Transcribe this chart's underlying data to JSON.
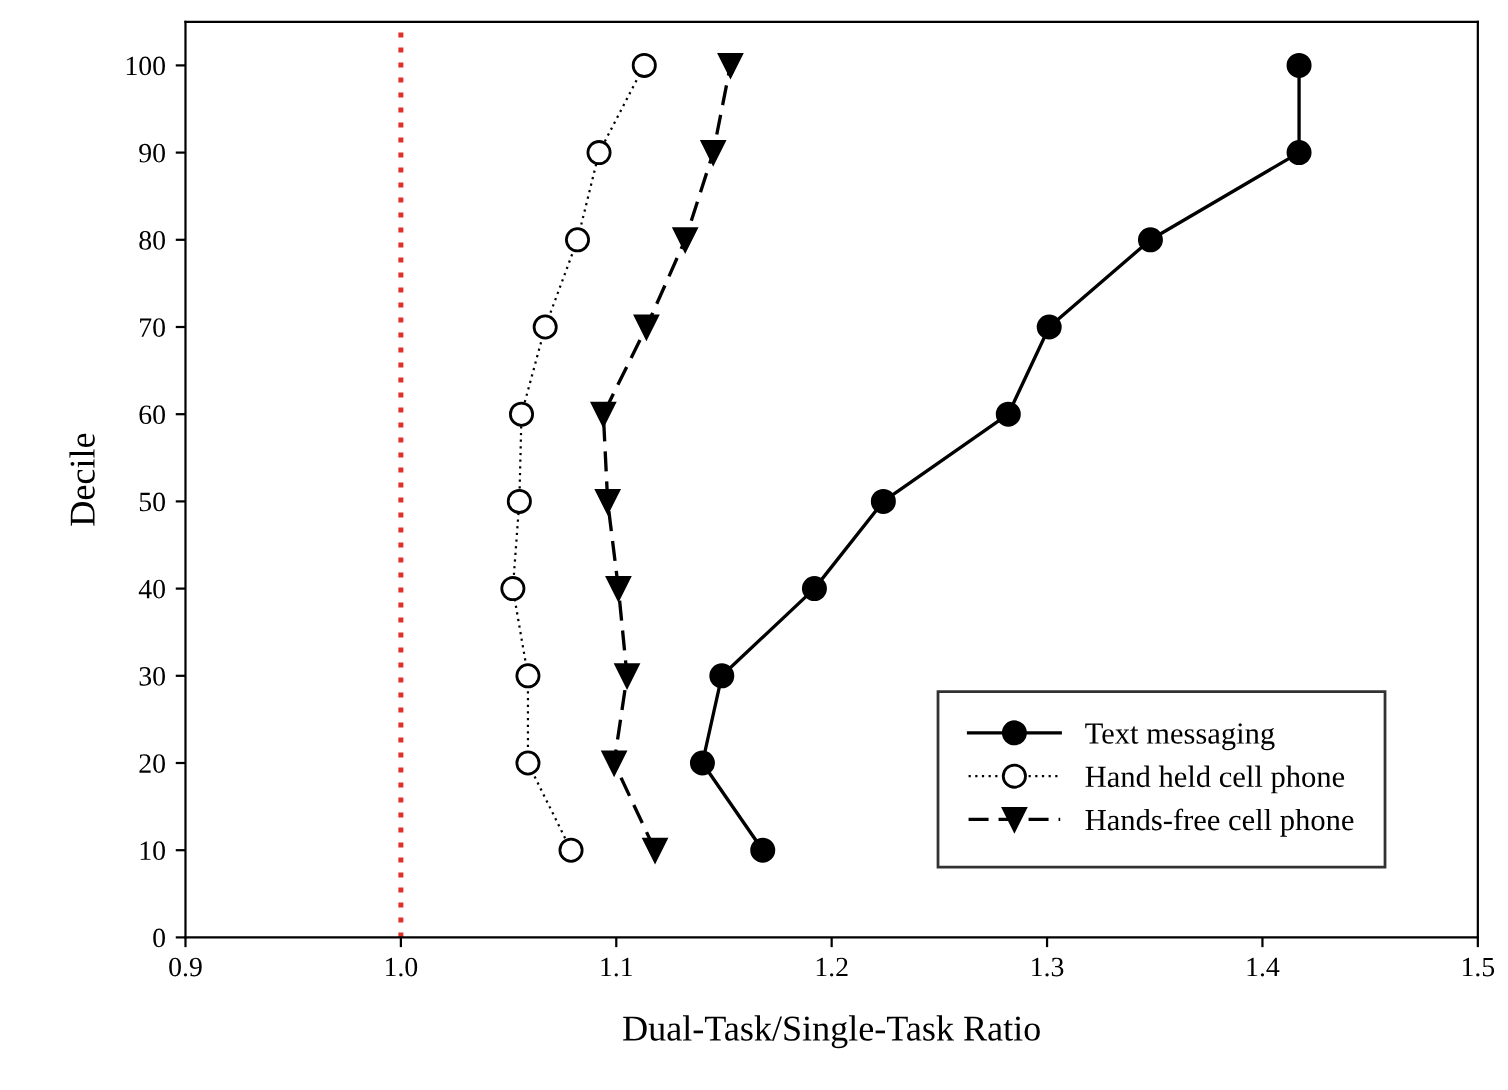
{
  "chart_data": {
    "type": "line",
    "xlabel": "Dual-Task/Single-Task Ratio",
    "ylabel": "Decile",
    "xlim": [
      0.9,
      1.5
    ],
    "xticks": [
      0.9,
      {
        "value": 1.0,
        "label": "1.0"
      },
      1.1,
      1.2,
      1.3,
      1.4,
      1.5
    ],
    "ylim": [
      0,
      105
    ],
    "yticks": [
      0,
      10,
      20,
      30,
      40,
      50,
      60,
      70,
      80,
      90,
      100
    ],
    "grid": false,
    "legend": "bottom right",
    "ref_lines": [
      {
        "axis": "x",
        "value": 1.0,
        "color": "#e0302a",
        "line_style": "dotted"
      }
    ],
    "series": [
      {
        "name": "Text messaging",
        "color": "#000000",
        "marker": "circle",
        "line_style": "solid",
        "x": [
          1.168,
          1.14,
          1.149,
          1.192,
          1.224,
          1.282,
          1.301,
          1.348,
          1.417,
          1.417
        ],
        "values": [
          10,
          20,
          30,
          40,
          50,
          60,
          70,
          80,
          90,
          100
        ]
      },
      {
        "name": "Hand held cell phone",
        "color": "#000000",
        "marker": "circle_open",
        "line_style": "dotted",
        "x": [
          1.079,
          1.059,
          1.059,
          1.052,
          1.055,
          1.056,
          1.067,
          1.082,
          1.092,
          1.113
        ],
        "values": [
          10,
          20,
          30,
          40,
          50,
          60,
          70,
          80,
          90,
          100
        ]
      },
      {
        "name": "Hands-free cell phone",
        "color": "#000000",
        "marker": "triangle",
        "line_style": "dashed",
        "x": [
          1.118,
          1.099,
          1.105,
          1.101,
          1.096,
          1.094,
          1.114,
          1.132,
          1.145,
          1.153
        ],
        "values": [
          10,
          20,
          30,
          40,
          50,
          60,
          70,
          80,
          90,
          100
        ]
      }
    ]
  }
}
